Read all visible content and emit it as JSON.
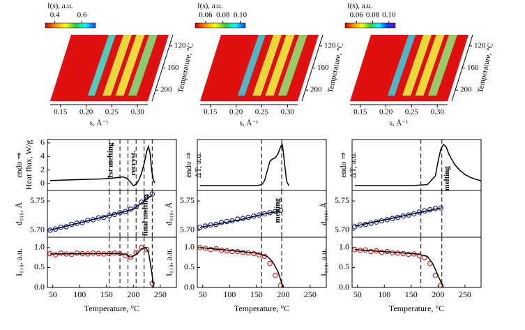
{
  "chart_data": [
    {
      "type": "surface",
      "colorbar_title": "I(s), a.u.",
      "clim": [
        0.33,
        0.7
      ],
      "cticks": [
        0.4,
        0.6
      ],
      "colormap": [
        "#d40000",
        "#ff8c00",
        "#ffff00",
        "#33cc33",
        "#00ffff",
        "#0044ff"
      ],
      "xlabel": "s, Å⁻¹",
      "xlim": [
        0.13,
        0.32
      ],
      "xticks": [
        0.15,
        {
          "value": 0.2,
          "label": "0.20"
        },
        0.25,
        {
          "value": 0.3,
          "label": "0.30"
        }
      ],
      "zlabel": "Temperature, °C",
      "zlim": [
        100,
        220
      ],
      "zticks": [
        120,
        160,
        200
      ],
      "peaks": [
        {
          "s": 0.21,
          "color": "#40e0d0"
        },
        {
          "s": 0.24,
          "color": "#e8f040"
        },
        {
          "s": 0.265,
          "color": "#f4f040"
        },
        {
          "s": 0.29,
          "color": "#7ee07e"
        }
      ]
    },
    {
      "type": "surface",
      "colorbar_title": "I(s), a.u.",
      "clim": [
        0.048,
        0.106
      ],
      "cticks": [
        0.06,
        0.08,
        {
          "value": 0.1,
          "label": "0.10"
        }
      ],
      "colormap": [
        "#d40000",
        "#ff8c00",
        "#ffff00",
        "#33cc33",
        "#00ffff",
        "#0044ff"
      ],
      "xlabel": "s, Å⁻¹",
      "xlim": [
        0.13,
        0.32
      ],
      "xticks": [
        0.15,
        {
          "value": 0.2,
          "label": "0.20"
        },
        0.25,
        {
          "value": 0.3,
          "label": "0.30"
        }
      ],
      "zlabel": "Temperature, °C",
      "zlim": [
        100,
        220
      ],
      "zticks": [
        120,
        160,
        200
      ],
      "peaks": [
        {
          "s": 0.21,
          "color": "#40c8d8"
        },
        {
          "s": 0.24,
          "color": "#e8f040"
        },
        {
          "s": 0.265,
          "color": "#f0f040"
        },
        {
          "s": 0.29,
          "color": "#90e070"
        }
      ]
    },
    {
      "type": "surface",
      "colorbar_title": "I(s), a.u.",
      "clim": [
        0.046,
        0.108
      ],
      "cticks": [
        0.06,
        0.08,
        {
          "value": 0.1,
          "label": "0.10"
        }
      ],
      "colormap": [
        "#d40000",
        "#ff8c00",
        "#ffff00",
        "#33cc33",
        "#00ffff",
        "#0044ff",
        "#8000c0"
      ],
      "xlabel": "s, Å⁻¹",
      "xlim": [
        0.13,
        0.32
      ],
      "xticks": [
        0.15,
        {
          "value": 0.2,
          "label": "0.20"
        },
        0.25,
        {
          "value": 0.3,
          "label": "0.30"
        }
      ],
      "zlabel": "Temperature, °C",
      "zlim": [
        100,
        220
      ],
      "zticks": [
        120,
        160,
        200
      ],
      "peaks": [
        {
          "s": 0.21,
          "color": "#40c8d8"
        },
        {
          "s": 0.24,
          "color": "#e8f040"
        },
        {
          "s": 0.265,
          "color": "#f0f040"
        },
        {
          "s": 0.29,
          "color": "#90e070"
        }
      ]
    },
    {
      "type": "line",
      "ylabel": "Heat flux, W/g",
      "ylabel2": "endo ⇒",
      "xlim": [
        40,
        280
      ],
      "ylim": [
        -1,
        6.5
      ],
      "yticks": [
        0,
        2,
        4,
        6
      ],
      "vlines": [
        155,
        175,
        190,
        205,
        220,
        235
      ],
      "annotations": [
        "1st melting",
        "recryst."
      ],
      "series": [
        {
          "color": "#000000",
          "mode": "line",
          "x": [
            45,
            60,
            80,
            100,
            120,
            140,
            160,
            170,
            180,
            188,
            195,
            200,
            205,
            210,
            215,
            220,
            225,
            228,
            231,
            234,
            237,
            240
          ],
          "values": [
            0.45,
            0.5,
            0.55,
            0.6,
            0.65,
            0.7,
            0.8,
            0.9,
            1.0,
            0.8,
            0.2,
            -0.3,
            -0.1,
            0.5,
            1.5,
            3,
            4.8,
            5.5,
            4.5,
            2,
            0.5,
            0.1
          ]
        }
      ]
    },
    {
      "type": "scatter",
      "ylabel": "d₀₁₀, Å",
      "xlim": [
        40,
        280
      ],
      "ylim": [
        5.688,
        5.768
      ],
      "yticks": [
        {
          "value": 5.7,
          "label": "5.70"
        },
        5.75
      ],
      "vlines": [
        155,
        175,
        190,
        205,
        220,
        235
      ],
      "annotations": [
        "final melting"
      ],
      "series": [
        {
          "color": "#1a2aa0",
          "mode": "markers",
          "x": [
            45,
            55,
            65,
            75,
            85,
            95,
            105,
            115,
            125,
            135,
            145,
            155,
            165,
            175,
            185,
            195,
            205,
            215,
            225,
            235
          ],
          "values": [
            5.7,
            5.702,
            5.705,
            5.706,
            5.71,
            5.712,
            5.713,
            5.717,
            5.718,
            5.721,
            5.722,
            5.725,
            5.727,
            5.73,
            5.732,
            5.736,
            5.74,
            5.748,
            5.757,
            5.762
          ]
        },
        {
          "color": "#000000",
          "mode": "line",
          "x": [
            45,
            180,
            200,
            220,
            235
          ],
          "values": [
            5.7,
            5.731,
            5.736,
            5.75,
            5.76
          ]
        }
      ]
    },
    {
      "type": "scatter",
      "ylabel": "I₀₁₀, a.u.",
      "xlabel": "Temperature, °C",
      "xlim": [
        40,
        280
      ],
      "ylim": [
        0,
        1.26
      ],
      "yticks": [
        {
          "value": 0,
          "label": "0.0"
        },
        0.5,
        {
          "value": 1,
          "label": "1.0"
        }
      ],
      "xticks": [
        50,
        100,
        150,
        200,
        250
      ],
      "vlines": [
        155,
        175,
        190,
        205,
        220,
        235
      ],
      "series": [
        {
          "color": "#d42020",
          "mode": "markers",
          "x": [
            45,
            55,
            65,
            75,
            85,
            95,
            105,
            115,
            125,
            135,
            145,
            155,
            165,
            175,
            185,
            195,
            205,
            215,
            225,
            235
          ],
          "values": [
            0.85,
            0.82,
            0.86,
            0.84,
            0.83,
            0.86,
            0.85,
            0.84,
            0.86,
            0.85,
            0.84,
            0.85,
            0.86,
            0.85,
            0.8,
            0.76,
            0.88,
            1.0,
            0.95,
            0.1
          ]
        },
        {
          "color": "#000000",
          "mode": "line",
          "x": [
            45,
            170,
            185,
            195,
            205,
            215,
            222,
            228,
            234,
            238
          ],
          "values": [
            0.84,
            0.85,
            0.83,
            0.76,
            0.82,
            0.97,
            1.0,
            0.9,
            0.4,
            0
          ]
        }
      ]
    },
    {
      "type": "line",
      "ylabel": "ΔT, a.u.",
      "ylabel2": "endo ⇒",
      "xlim": [
        40,
        280
      ],
      "ylim": [
        0,
        1.05
      ],
      "vlines": [
        160,
        197
      ],
      "series": [
        {
          "color": "#000000",
          "mode": "line",
          "x": [
            45,
            80,
            120,
            150,
            160,
            165,
            170,
            175,
            180,
            185,
            190,
            195,
            198,
            200,
            203,
            206,
            210
          ],
          "values": [
            0.1,
            0.1,
            0.1,
            0.1,
            0.12,
            0.2,
            0.4,
            0.6,
            0.65,
            0.67,
            0.75,
            0.9,
            0.95,
            0.8,
            0.5,
            0.2,
            0.1
          ]
        }
      ]
    },
    {
      "type": "scatter",
      "ylabel": "d₀₁₀, Å",
      "xlim": [
        40,
        280
      ],
      "ylim": [
        5.688,
        5.768
      ],
      "yticks": [
        {
          "value": 5.7,
          "label": "5.70"
        },
        5.75
      ],
      "vlines": [
        160,
        197
      ],
      "annotations": [
        "melting"
      ],
      "series": [
        {
          "color": "#1a2aa0",
          "mode": "markers",
          "x": [
            45,
            55,
            65,
            75,
            85,
            95,
            105,
            115,
            125,
            135,
            145,
            155,
            165,
            175,
            185,
            195
          ],
          "values": [
            5.705,
            5.707,
            5.709,
            5.71,
            5.713,
            5.715,
            5.716,
            5.719,
            5.72,
            5.722,
            5.724,
            5.726,
            5.728,
            5.73,
            5.732,
            5.734
          ]
        },
        {
          "color": "#000000",
          "mode": "line",
          "x": [
            45,
            120,
            170,
            195
          ],
          "values": [
            5.705,
            5.718,
            5.729,
            5.733
          ]
        }
      ]
    },
    {
      "type": "scatter",
      "ylabel": "I₀₁₀, a.u.",
      "xlabel": "Temperature, °C",
      "xlim": [
        40,
        280
      ],
      "ylim": [
        0,
        1.26
      ],
      "yticks": [
        {
          "value": 0,
          "label": "0.0"
        },
        0.5,
        {
          "value": 1,
          "label": "1.0"
        }
      ],
      "xticks": [
        50,
        100,
        150,
        200,
        250
      ],
      "vlines": [
        160,
        197
      ],
      "series": [
        {
          "color": "#d42020",
          "mode": "markers",
          "x": [
            45,
            55,
            65,
            75,
            85,
            95,
            105,
            115,
            125,
            135,
            145,
            155,
            165,
            175,
            185,
            195
          ],
          "values": [
            1.0,
            0.98,
            0.95,
            0.97,
            0.93,
            0.92,
            0.9,
            0.9,
            0.88,
            0.87,
            0.85,
            0.82,
            0.78,
            0.6,
            0.3,
            0.05
          ]
        },
        {
          "color": "#000000",
          "mode": "line",
          "x": [
            45,
            100,
            150,
            170,
            180,
            190,
            195,
            199
          ],
          "values": [
            1.0,
            0.93,
            0.86,
            0.78,
            0.65,
            0.4,
            0.2,
            0
          ]
        }
      ]
    },
    {
      "type": "line",
      "ylabel": "ΔT, a.u.",
      "ylabel2": "endo ⇒",
      "xlim": [
        40,
        280
      ],
      "ylim": [
        0,
        1.05
      ],
      "vlines": [
        168,
        207
      ],
      "annotations": [
        "melting"
      ],
      "series": [
        {
          "color": "#000000",
          "mode": "line",
          "x": [
            45,
            100,
            150,
            180,
            195,
            200,
            205,
            210,
            215,
            220,
            230,
            240,
            250,
            260,
            270,
            280
          ],
          "values": [
            0.1,
            0.1,
            0.1,
            0.12,
            0.3,
            0.6,
            0.85,
            0.95,
            0.9,
            0.75,
            0.55,
            0.42,
            0.33,
            0.27,
            0.23,
            0.2
          ]
        }
      ]
    },
    {
      "type": "scatter",
      "ylabel": "d₀₁₀, Å",
      "xlim": [
        40,
        280
      ],
      "ylim": [
        5.688,
        5.768
      ],
      "yticks": [
        {
          "value": 5.7,
          "label": "5.70"
        },
        5.75
      ],
      "vlines": [
        168,
        207
      ],
      "series": [
        {
          "color": "#1a2aa0",
          "mode": "markers",
          "x": [
            45,
            55,
            65,
            75,
            85,
            95,
            105,
            115,
            125,
            135,
            145,
            155,
            165,
            175,
            185,
            195,
            205
          ],
          "values": [
            5.706,
            5.709,
            5.71,
            5.712,
            5.714,
            5.716,
            5.718,
            5.72,
            5.722,
            5.724,
            5.726,
            5.728,
            5.731,
            5.733,
            5.735,
            5.737,
            5.738
          ]
        },
        {
          "color": "#000000",
          "mode": "line",
          "x": [
            45,
            205
          ],
          "values": [
            5.707,
            5.738
          ]
        }
      ]
    },
    {
      "type": "scatter",
      "ylabel": "I₀₁₀, a.u.",
      "xlabel": "Temperature, °C",
      "xlim": [
        40,
        280
      ],
      "ylim": [
        0,
        1.26
      ],
      "yticks": [
        {
          "value": 0,
          "label": "0.0"
        },
        0.5,
        {
          "value": 1,
          "label": "1.0"
        }
      ],
      "xticks": [
        50,
        100,
        150,
        200,
        250
      ],
      "vlines": [
        168,
        207
      ],
      "series": [
        {
          "color": "#d42020",
          "mode": "markers",
          "x": [
            45,
            55,
            65,
            75,
            85,
            95,
            105,
            115,
            125,
            135,
            145,
            155,
            165,
            175,
            185,
            195,
            205
          ],
          "values": [
            0.95,
            0.93,
            0.94,
            0.9,
            0.92,
            0.88,
            0.9,
            0.87,
            0.86,
            0.85,
            0.83,
            0.84,
            0.8,
            0.75,
            0.6,
            0.3,
            0.05
          ]
        },
        {
          "color": "#000000",
          "mode": "line",
          "x": [
            45,
            120,
            160,
            180,
            190,
            200,
            210
          ],
          "values": [
            0.95,
            0.88,
            0.84,
            0.78,
            0.6,
            0.3,
            0
          ]
        }
      ]
    }
  ]
}
